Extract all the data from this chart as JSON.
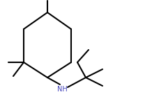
{
  "bg_color": "#ffffff",
  "line_color": "#000000",
  "nh_color": "#4444bb",
  "line_width": 1.5,
  "figsize": [
    2.18,
    1.43
  ],
  "dpi": 100,
  "xlim": [
    0,
    218
  ],
  "ylim": [
    0,
    143
  ]
}
